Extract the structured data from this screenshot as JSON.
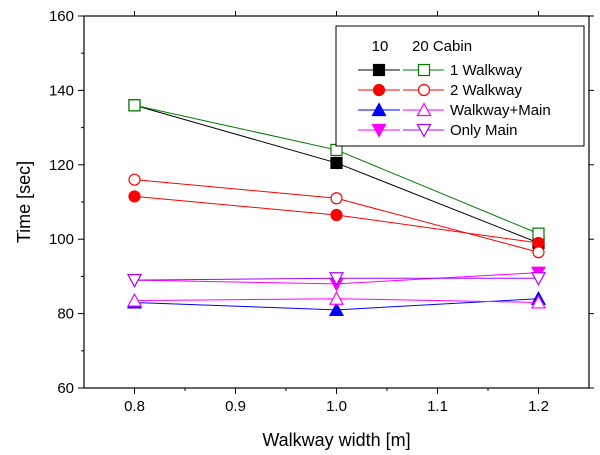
{
  "chart_data": {
    "type": "line",
    "title": "",
    "xlabel": "Walkway width [m]",
    "ylabel": "Time [sec]",
    "xlim": [
      0.75,
      1.25
    ],
    "ylim": [
      60,
      160
    ],
    "xticks": [
      0.8,
      0.9,
      1.0,
      1.1,
      1.2
    ],
    "xtick_labels": [
      "0.8",
      "0.9",
      "1.0",
      "1.1",
      "1.2"
    ],
    "yticks": [
      60,
      80,
      100,
      120,
      140,
      160
    ],
    "ytick_labels": [
      "60",
      "80",
      "100",
      "120",
      "140",
      "160"
    ],
    "grid": false,
    "legend_placement": "top-right",
    "legend_header": [
      "10",
      "20 Cabin"
    ],
    "x": [
      0.8,
      1.0,
      1.2
    ],
    "groups": [
      {
        "name": "1 Walkway",
        "color_filled": "#000000",
        "color_open": "#007a00",
        "marker": "square",
        "series": [
          {
            "name": "10",
            "filled": true,
            "values": [
              136,
              120.5,
              99
            ]
          },
          {
            "name": "20 Cabin",
            "filled": false,
            "values": [
              136,
              124,
              101.5
            ]
          }
        ]
      },
      {
        "name": "2 Walkway",
        "color_filled": "#ff0000",
        "color_open": "#ff0000",
        "marker": "circle",
        "series": [
          {
            "name": "10",
            "filled": true,
            "values": [
              111.5,
              106.5,
              99
            ]
          },
          {
            "name": "20 Cabin",
            "filled": false,
            "values": [
              116,
              111,
              96.5
            ]
          }
        ]
      },
      {
        "name": "Walkway+Main",
        "color_filled": "#0000ff",
        "color_open": "#ff00ff",
        "marker": "triangle-up",
        "series": [
          {
            "name": "10",
            "filled": true,
            "values": [
              83,
              81,
              84
            ]
          },
          {
            "name": "20 Cabin",
            "filled": false,
            "values": [
              83.5,
              84,
              83
            ]
          }
        ]
      },
      {
        "name": "Only Main",
        "color_filled": "#ff00ff",
        "color_open": "#aa00ff",
        "marker": "triangle-down",
        "series": [
          {
            "name": "10",
            "filled": true,
            "values": [
              89,
              88,
              91
            ]
          },
          {
            "name": "20 Cabin",
            "filled": false,
            "values": [
              89,
              89.5,
              89.5
            ]
          }
        ]
      }
    ]
  }
}
